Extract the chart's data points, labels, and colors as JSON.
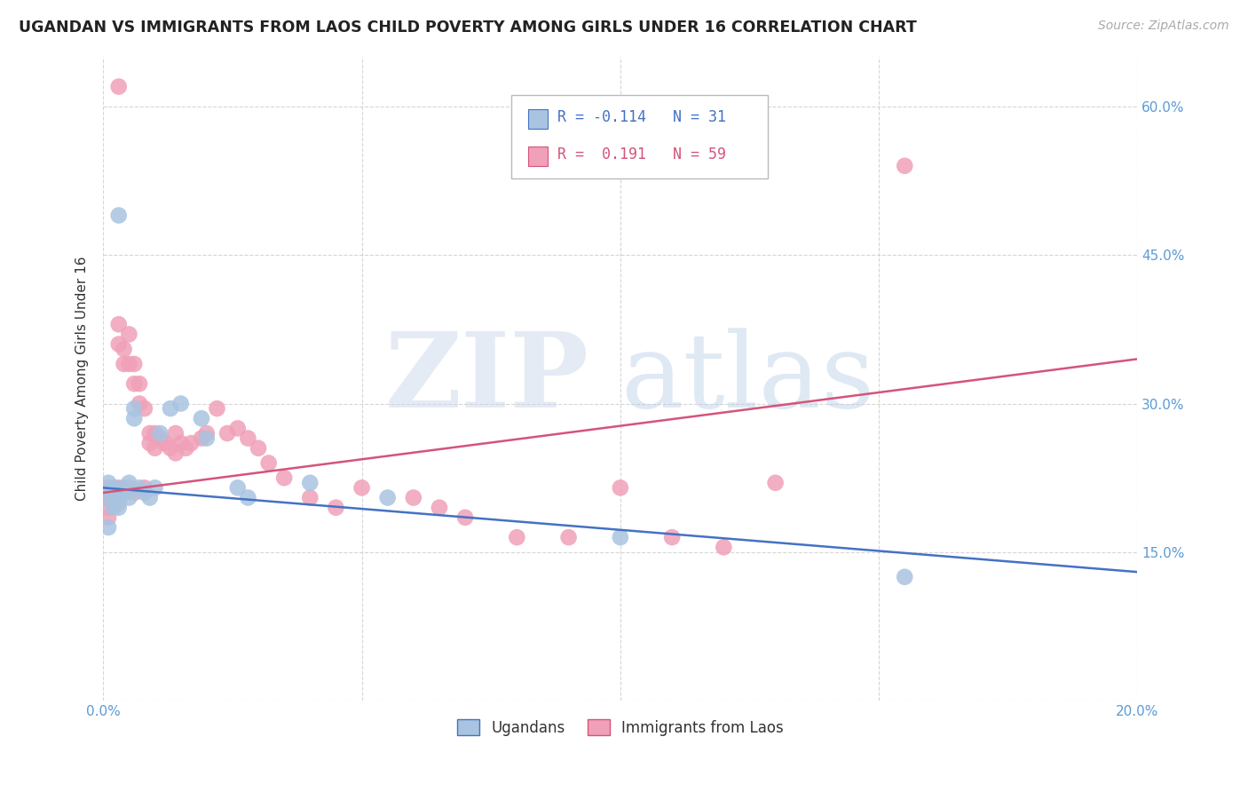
{
  "title": "UGANDAN VS IMMIGRANTS FROM LAOS CHILD POVERTY AMONG GIRLS UNDER 16 CORRELATION CHART",
  "source": "Source: ZipAtlas.com",
  "ylabel": "Child Poverty Among Girls Under 16",
  "xlim": [
    0.0,
    0.2
  ],
  "ylim": [
    0.0,
    0.65
  ],
  "ugandan_R": -0.114,
  "ugandan_N": 31,
  "laos_R": 0.191,
  "laos_N": 59,
  "ugandan_dot_color": "#a8c4e0",
  "laos_dot_color": "#f0a0b8",
  "ugandan_line_color": "#4472c4",
  "laos_line_color": "#d4547a",
  "ugandan_x": [
    0.001,
    0.001,
    0.001,
    0.002,
    0.002,
    0.002,
    0.003,
    0.003,
    0.003,
    0.004,
    0.004,
    0.005,
    0.005,
    0.006,
    0.006,
    0.007,
    0.008,
    0.009,
    0.01,
    0.011,
    0.013,
    0.015,
    0.019,
    0.02,
    0.026,
    0.028,
    0.04,
    0.055,
    0.1,
    0.155,
    0.003
  ],
  "ugandan_y": [
    0.22,
    0.205,
    0.175,
    0.215,
    0.21,
    0.195,
    0.21,
    0.205,
    0.195,
    0.215,
    0.21,
    0.205,
    0.22,
    0.285,
    0.295,
    0.215,
    0.21,
    0.205,
    0.215,
    0.27,
    0.295,
    0.3,
    0.285,
    0.265,
    0.215,
    0.205,
    0.22,
    0.205,
    0.165,
    0.125,
    0.49
  ],
  "laos_x": [
    0.001,
    0.001,
    0.001,
    0.001,
    0.002,
    0.002,
    0.002,
    0.003,
    0.003,
    0.003,
    0.003,
    0.004,
    0.004,
    0.004,
    0.005,
    0.005,
    0.005,
    0.006,
    0.006,
    0.006,
    0.007,
    0.007,
    0.008,
    0.008,
    0.009,
    0.009,
    0.01,
    0.01,
    0.011,
    0.012,
    0.013,
    0.014,
    0.014,
    0.015,
    0.016,
    0.017,
    0.019,
    0.02,
    0.022,
    0.024,
    0.026,
    0.028,
    0.03,
    0.032,
    0.035,
    0.04,
    0.045,
    0.05,
    0.06,
    0.065,
    0.07,
    0.08,
    0.09,
    0.1,
    0.11,
    0.12,
    0.13,
    0.155,
    0.003
  ],
  "laos_y": [
    0.215,
    0.205,
    0.195,
    0.185,
    0.215,
    0.21,
    0.2,
    0.36,
    0.38,
    0.215,
    0.2,
    0.355,
    0.34,
    0.21,
    0.37,
    0.34,
    0.215,
    0.34,
    0.32,
    0.21,
    0.32,
    0.3,
    0.295,
    0.215,
    0.27,
    0.26,
    0.27,
    0.255,
    0.265,
    0.26,
    0.255,
    0.27,
    0.25,
    0.26,
    0.255,
    0.26,
    0.265,
    0.27,
    0.295,
    0.27,
    0.275,
    0.265,
    0.255,
    0.24,
    0.225,
    0.205,
    0.195,
    0.215,
    0.205,
    0.195,
    0.185,
    0.165,
    0.165,
    0.215,
    0.165,
    0.155,
    0.22,
    0.54,
    0.62
  ]
}
